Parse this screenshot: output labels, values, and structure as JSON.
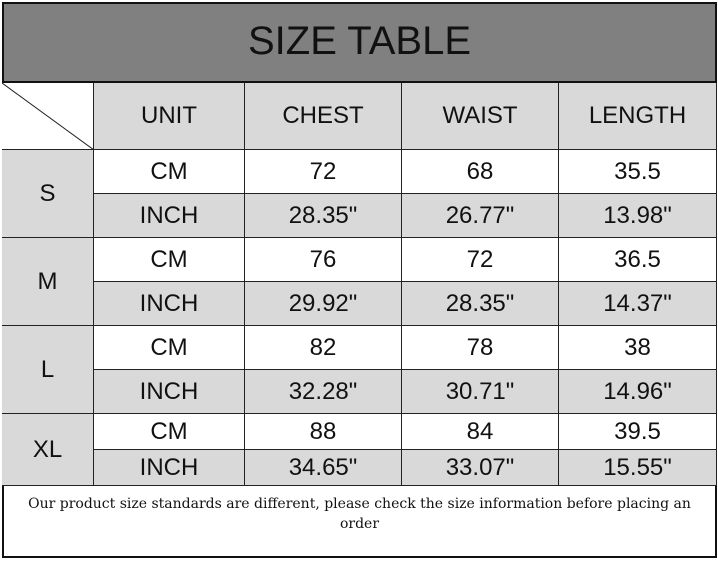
{
  "title": "SIZE TABLE",
  "headers": [
    "UNIT",
    "CHEST",
    "WAIST",
    "LENGTH"
  ],
  "sizes": [
    {
      "size": "S",
      "rows": [
        [
          "CM",
          "72",
          "68",
          "35.5"
        ],
        [
          "INCH",
          "28.35\"",
          "26.77\"",
          "13.98\""
        ]
      ]
    },
    {
      "size": "M",
      "rows": [
        [
          "CM",
          "76",
          "72",
          "36.5"
        ],
        [
          "INCH",
          "29.92\"",
          "28.35\"",
          "14.37\""
        ]
      ]
    },
    {
      "size": "L",
      "rows": [
        [
          "CM",
          "82",
          "78",
          "38"
        ],
        [
          "INCH",
          "32.28\"",
          "30.71\"",
          "14.96\""
        ]
      ]
    },
    {
      "size": "XL",
      "rows": [
        [
          "CM",
          "88",
          "84",
          "39.5"
        ],
        [
          "INCH",
          "34.65\"",
          "33.07\"",
          "15.55\""
        ]
      ]
    }
  ],
  "note": "Our product size standards are different, please check the size information before placing an order"
}
